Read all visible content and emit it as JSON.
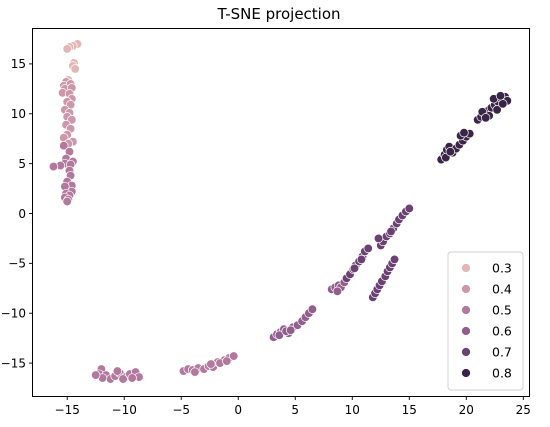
{
  "chart_data": {
    "type": "scatter",
    "title": "T-SNE projection",
    "xlabel": "",
    "ylabel": "",
    "xlim": [
      -18,
      25.5
    ],
    "ylim": [
      -18.3,
      18.5
    ],
    "xticks": [
      -15,
      -10,
      -5,
      0,
      5,
      10,
      15,
      20,
      25
    ],
    "yticks": [
      -15,
      -10,
      -5,
      0,
      5,
      10,
      15
    ],
    "grid": false,
    "legend": {
      "placement": "lower-right",
      "entries": [
        {
          "label": "0.3",
          "color": "#e0b7b5"
        },
        {
          "label": "0.4",
          "color": "#cc97a9"
        },
        {
          "label": "0.5",
          "color": "#b3789e"
        },
        {
          "label": "0.6",
          "color": "#915e8e"
        },
        {
          "label": "0.7",
          "color": "#6a4172"
        },
        {
          "label": "0.8",
          "color": "#3a2447"
        }
      ]
    },
    "series": [
      {
        "name": "0.3",
        "color": "#e0b7b5",
        "points": [
          [
            -14.1,
            17.0
          ],
          [
            -14.5,
            16.8
          ],
          [
            -14.8,
            16.7
          ],
          [
            -15.0,
            16.5
          ],
          [
            -14.4,
            15.1
          ],
          [
            -14.5,
            14.8
          ],
          [
            -14.3,
            14.5
          ],
          [
            -14.9,
            13.4
          ]
        ]
      },
      {
        "name": "0.4",
        "color": "#cc97a9",
        "points": [
          [
            -15.1,
            13.2
          ],
          [
            -15.3,
            12.8
          ],
          [
            -14.7,
            13.0
          ],
          [
            -15.2,
            12.5
          ],
          [
            -14.6,
            12.6
          ],
          [
            -15.4,
            12.1
          ],
          [
            -14.8,
            12.0
          ],
          [
            -14.6,
            11.5
          ],
          [
            -15.0,
            11.2
          ],
          [
            -14.7,
            10.9
          ],
          [
            -15.2,
            10.4
          ],
          [
            -14.8,
            10.1
          ],
          [
            -15.0,
            9.7
          ],
          [
            -14.6,
            9.4
          ],
          [
            -15.1,
            8.9
          ],
          [
            -14.7,
            8.5
          ],
          [
            -15.0,
            7.9
          ],
          [
            -15.3,
            7.6
          ],
          [
            -14.5,
            7.2
          ],
          [
            -14.9,
            7.0
          ]
        ]
      },
      {
        "name": "0.5",
        "color": "#b3789e",
        "points": [
          [
            -15.3,
            6.8
          ],
          [
            -14.8,
            6.2
          ],
          [
            -15.1,
            5.5
          ],
          [
            -14.5,
            5.2
          ],
          [
            -15.2,
            5.0
          ],
          [
            -14.7,
            4.9
          ],
          [
            -15.6,
            4.8
          ],
          [
            -16.2,
            4.7
          ],
          [
            -14.8,
            4.3
          ],
          [
            -14.7,
            3.8
          ],
          [
            -15.0,
            3.2
          ],
          [
            -14.6,
            2.8
          ],
          [
            -15.2,
            2.7
          ],
          [
            -14.6,
            2.2
          ],
          [
            -15.1,
            2.0
          ],
          [
            -14.8,
            1.8
          ],
          [
            -15.2,
            1.6
          ],
          [
            -14.9,
            1.4
          ],
          [
            -15.0,
            1.2
          ],
          [
            -12.0,
            -15.6
          ],
          [
            -12.2,
            -16.1
          ],
          [
            -11.6,
            -16.2
          ],
          [
            -11.2,
            -16.6
          ],
          [
            -10.8,
            -16.3
          ],
          [
            -10.4,
            -16.0
          ],
          [
            -9.9,
            -16.4
          ],
          [
            -9.5,
            -16.1
          ],
          [
            -9.0,
            -15.9
          ],
          [
            -8.7,
            -16.4
          ],
          [
            -11.9,
            -16.5
          ],
          [
            -10.6,
            -15.8
          ],
          [
            -12.5,
            -16.2
          ],
          [
            -10.1,
            -16.6
          ],
          [
            -9.3,
            -16.5
          ],
          [
            -4.8,
            -15.8
          ],
          [
            -4.4,
            -15.6
          ],
          [
            -4.0,
            -15.7
          ],
          [
            -3.5,
            -15.5
          ],
          [
            -3.0,
            -15.6
          ],
          [
            -2.6,
            -15.3
          ],
          [
            -2.2,
            -15.4
          ],
          [
            -1.8,
            -14.9
          ],
          [
            -1.2,
            -14.7
          ],
          [
            -0.8,
            -14.5
          ],
          [
            -0.4,
            -14.3
          ],
          [
            -3.8,
            -15.9
          ],
          [
            -2.4,
            -15.1
          ],
          [
            -1.6,
            -15.0
          ],
          [
            -1.0,
            -14.8
          ]
        ]
      },
      {
        "name": "0.6",
        "color": "#915e8e",
        "points": [
          [
            3.1,
            -12.4
          ],
          [
            3.4,
            -12.1
          ],
          [
            3.7,
            -11.9
          ],
          [
            4.0,
            -11.6
          ],
          [
            4.4,
            -12.0
          ],
          [
            4.8,
            -11.4
          ],
          [
            5.2,
            -11.2
          ],
          [
            5.6,
            -10.8
          ],
          [
            5.9,
            -10.4
          ],
          [
            6.2,
            -10.0
          ],
          [
            6.5,
            -9.6
          ],
          [
            3.6,
            -12.2
          ],
          [
            4.2,
            -11.8
          ],
          [
            4.6,
            -11.7
          ],
          [
            8.2,
            -7.6
          ],
          [
            8.5,
            -7.4
          ],
          [
            8.8,
            -7.2
          ],
          [
            9.0,
            -7.4
          ],
          [
            8.7,
            -7.8
          ],
          [
            9.3,
            -6.9
          ]
        ]
      },
      {
        "name": "0.7",
        "color": "#6a4172",
        "points": [
          [
            9.5,
            -6.5
          ],
          [
            9.8,
            -6.1
          ],
          [
            10.1,
            -5.6
          ],
          [
            10.3,
            -5.2
          ],
          [
            10.6,
            -4.8
          ],
          [
            10.9,
            -4.3
          ],
          [
            11.1,
            -3.8
          ],
          [
            11.4,
            -3.5
          ],
          [
            10.2,
            -5.5
          ],
          [
            10.8,
            -4.6
          ],
          [
            11.8,
            -8.4
          ],
          [
            12.0,
            -8.0
          ],
          [
            12.2,
            -7.6
          ],
          [
            12.4,
            -7.2
          ],
          [
            12.6,
            -6.8
          ],
          [
            12.9,
            -6.3
          ],
          [
            13.1,
            -5.8
          ],
          [
            13.3,
            -5.4
          ],
          [
            13.5,
            -5.0
          ],
          [
            13.7,
            -4.6
          ],
          [
            12.5,
            -3.2
          ],
          [
            12.7,
            -2.8
          ],
          [
            13.0,
            -2.3
          ],
          [
            13.3,
            -2.0
          ],
          [
            13.6,
            -1.5
          ],
          [
            13.9,
            -1.0
          ],
          [
            14.1,
            -0.6
          ],
          [
            14.4,
            -0.2
          ],
          [
            14.7,
            0.2
          ],
          [
            15.0,
            0.5
          ],
          [
            12.3,
            -2.5
          ],
          [
            13.4,
            -1.8
          ]
        ]
      },
      {
        "name": "0.8",
        "color": "#3a2447",
        "points": [
          [
            17.8,
            5.4
          ],
          [
            18.1,
            5.9
          ],
          [
            18.3,
            6.4
          ],
          [
            18.5,
            6.7
          ],
          [
            18.8,
            6.1
          ],
          [
            19.1,
            6.5
          ],
          [
            19.4,
            6.9
          ],
          [
            19.7,
            7.3
          ],
          [
            20.0,
            7.7
          ],
          [
            20.3,
            8.0
          ],
          [
            18.2,
            5.6
          ],
          [
            18.6,
            6.2
          ],
          [
            19.5,
            7.8
          ],
          [
            19.8,
            8.1
          ],
          [
            21.0,
            9.4
          ],
          [
            21.3,
            9.7
          ],
          [
            21.6,
            10.0
          ],
          [
            21.9,
            10.3
          ],
          [
            22.2,
            10.6
          ],
          [
            22.5,
            10.9
          ],
          [
            22.8,
            11.2
          ],
          [
            23.1,
            11.5
          ],
          [
            23.4,
            11.7
          ],
          [
            23.6,
            11.3
          ],
          [
            21.4,
            10.2
          ],
          [
            22.0,
            9.8
          ],
          [
            22.7,
            10.4
          ],
          [
            23.2,
            11.0
          ],
          [
            21.7,
            9.6
          ],
          [
            22.4,
            11.5
          ],
          [
            23.0,
            11.8
          ]
        ]
      }
    ]
  }
}
